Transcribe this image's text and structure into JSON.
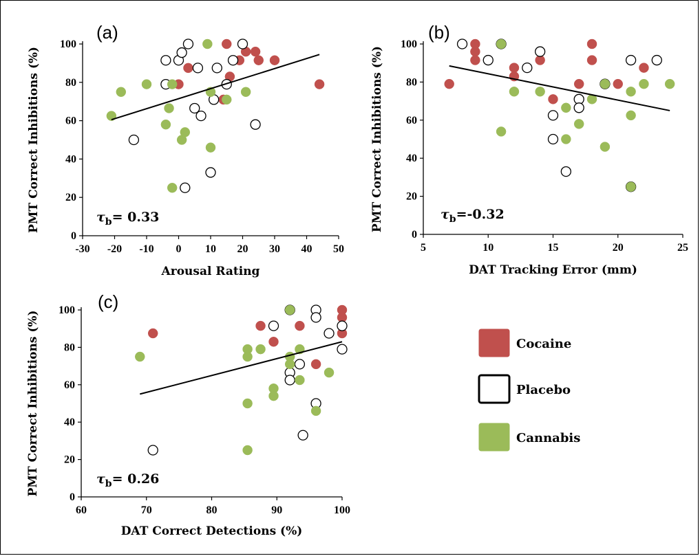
{
  "colors": {
    "cocaine": "#c0504d",
    "placebo": "#ffffff",
    "cannabis": "#9bbb59",
    "stroke": "#000000"
  },
  "legend": [
    {
      "name": "Cocaine",
      "fill": "#c0504d"
    },
    {
      "name": "Placebo",
      "fill": "#ffffff"
    },
    {
      "name": "Cannabis",
      "fill": "#9bbb59"
    }
  ],
  "chart_data": [
    {
      "type": "scatter",
      "panel_label": "(a)",
      "xlabel": "Arousal Rating",
      "ylabel": "PMT Correct Inhibitions (%)",
      "xlim": [
        -30,
        50
      ],
      "ylim": [
        0,
        100
      ],
      "xticks": [
        -30,
        -20,
        -10,
        0,
        10,
        20,
        30,
        40,
        50
      ],
      "yticks": [
        0,
        20,
        40,
        60,
        80,
        100
      ],
      "annotation_symbol": "τ",
      "annotation_sub": "b",
      "annotation_value": "= 0.33",
      "trendline": {
        "x1": -21,
        "y1": 60.5,
        "x2": 44,
        "y2": 94.5
      },
      "series": [
        {
          "group": "cocaine",
          "points": [
            [
              0,
              79
            ],
            [
              3,
              87.5
            ],
            [
              6,
              87.5
            ],
            [
              14,
              71
            ],
            [
              15,
              100
            ],
            [
              16,
              83
            ],
            [
              19,
              91.5
            ],
            [
              20,
              100
            ],
            [
              21,
              96
            ],
            [
              24,
              96
            ],
            [
              25,
              91.5
            ],
            [
              30,
              91.5
            ],
            [
              44,
              79
            ]
          ]
        },
        {
          "group": "placebo",
          "points": [
            [
              -14,
              50
            ],
            [
              -4,
              91.5
            ],
            [
              -4,
              79
            ],
            [
              0,
              91.5
            ],
            [
              1,
              95.5
            ],
            [
              3,
              100
            ],
            [
              2,
              25
            ],
            [
              5,
              66.5
            ],
            [
              6,
              87.5
            ],
            [
              7,
              62.5
            ],
            [
              10,
              33
            ],
            [
              11,
              71
            ],
            [
              12,
              87.5
            ],
            [
              15,
              79
            ],
            [
              17,
              91.5
            ],
            [
              20,
              100
            ],
            [
              24,
              58
            ]
          ]
        },
        {
          "group": "cannabis",
          "points": [
            [
              -21,
              62.5
            ],
            [
              -18,
              75
            ],
            [
              -10,
              79
            ],
            [
              -2,
              79
            ],
            [
              -3,
              66.5
            ],
            [
              -4,
              58
            ],
            [
              -2,
              25
            ],
            [
              1,
              50
            ],
            [
              2,
              54
            ],
            [
              9,
              100
            ],
            [
              10,
              75
            ],
            [
              10,
              46
            ],
            [
              15,
              71
            ],
            [
              21,
              75
            ]
          ]
        }
      ]
    },
    {
      "type": "scatter",
      "panel_label": "(b)",
      "xlabel": "DAT Tracking Error (mm)",
      "ylabel": "PMT Correct Inhibitions (%)",
      "xlim": [
        5,
        25
      ],
      "ylim": [
        0,
        100
      ],
      "xticks": [
        5,
        10,
        15,
        20,
        25
      ],
      "yticks": [
        0,
        20,
        40,
        60,
        80,
        100
      ],
      "annotation_symbol": "τ",
      "annotation_sub": "b",
      "annotation_value": "=-0.32",
      "trendline": {
        "x1": 7,
        "y1": 88.5,
        "x2": 24,
        "y2": 65
      },
      "series": [
        {
          "group": "cocaine",
          "points": [
            [
              7,
              79
            ],
            [
              9,
              100
            ],
            [
              9,
              96
            ],
            [
              9,
              91.5
            ],
            [
              12,
              87.5
            ],
            [
              12,
              83
            ],
            [
              14,
              91.5
            ],
            [
              15,
              71
            ],
            [
              17,
              79
            ],
            [
              18,
              100
            ],
            [
              18,
              91.5
            ],
            [
              20,
              79
            ],
            [
              22,
              87.5
            ]
          ]
        },
        {
          "group": "placebo",
          "points": [
            [
              8,
              100
            ],
            [
              10,
              91.5
            ],
            [
              11,
              100
            ],
            [
              13,
              87.5
            ],
            [
              14,
              96
            ],
            [
              15,
              62.5
            ],
            [
              15,
              50
            ],
            [
              16,
              33
            ],
            [
              17,
              71
            ],
            [
              17,
              66.5
            ],
            [
              19,
              79
            ],
            [
              21,
              91.5
            ],
            [
              21,
              25
            ],
            [
              23,
              91.5
            ]
          ]
        },
        {
          "group": "cannabis",
          "points": [
            [
              11,
              100
            ],
            [
              11,
              54
            ],
            [
              12,
              75
            ],
            [
              14,
              75
            ],
            [
              16,
              66.5
            ],
            [
              16,
              50
            ],
            [
              17,
              58
            ],
            [
              18,
              71
            ],
            [
              19,
              79
            ],
            [
              19,
              46
            ],
            [
              21,
              75
            ],
            [
              21,
              62.5
            ],
            [
              21,
              25
            ],
            [
              22,
              79
            ],
            [
              24,
              79
            ]
          ]
        }
      ]
    },
    {
      "type": "scatter",
      "panel_label": "(c)",
      "xlabel": "DAT Correct Detections (%)",
      "ylabel": "PMT Correct Inhibitions (%)",
      "xlim": [
        60,
        100
      ],
      "ylim": [
        0,
        100
      ],
      "xticks": [
        60,
        70,
        80,
        90,
        100
      ],
      "yticks": [
        0,
        20,
        40,
        60,
        80,
        100
      ],
      "annotation_symbol": "τ",
      "annotation_sub": "b",
      "annotation_value": "= 0.26",
      "trendline": {
        "x1": 69,
        "y1": 55,
        "x2": 100,
        "y2": 83
      },
      "series": [
        {
          "group": "cocaine",
          "points": [
            [
              71,
              87.5
            ],
            [
              87.5,
              91.5
            ],
            [
              89.5,
              83
            ],
            [
              93.5,
              91.5
            ],
            [
              96,
              71
            ],
            [
              100,
              100
            ],
            [
              100,
              96
            ],
            [
              100,
              87.5
            ]
          ]
        },
        {
          "group": "placebo",
          "points": [
            [
              71,
              25
            ],
            [
              89.5,
              91.5
            ],
            [
              92,
              100
            ],
            [
              92,
              66.5
            ],
            [
              92,
              62.5
            ],
            [
              93.5,
              71
            ],
            [
              94,
              33
            ],
            [
              96,
              100
            ],
            [
              96,
              96
            ],
            [
              96,
              50
            ],
            [
              98,
              87.5
            ],
            [
              100,
              91.5
            ],
            [
              100,
              79
            ]
          ]
        },
        {
          "group": "cannabis",
          "points": [
            [
              69,
              75
            ],
            [
              85.5,
              79
            ],
            [
              85.5,
              75
            ],
            [
              85.5,
              50
            ],
            [
              85.5,
              25
            ],
            [
              87.5,
              79
            ],
            [
              89.5,
              58
            ],
            [
              89.5,
              54
            ],
            [
              92,
              100
            ],
            [
              92,
              75
            ],
            [
              92,
              71
            ],
            [
              93.5,
              79
            ],
            [
              93.5,
              62.5
            ],
            [
              96,
              46
            ],
            [
              98,
              66.5
            ]
          ]
        }
      ]
    }
  ]
}
